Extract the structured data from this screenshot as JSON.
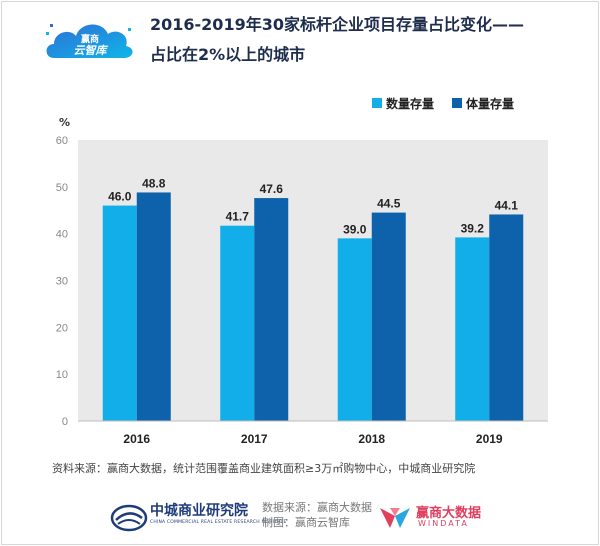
{
  "header": {
    "logo_text_top": "赢商",
    "logo_text_bottom": "云智库",
    "title_line1": "2016-2019年30家标杆企业项目存量占比变化——",
    "title_line2": "占比在2%以上的城市"
  },
  "chart_data": {
    "type": "bar",
    "categories": [
      "2016",
      "2017",
      "2018",
      "2019"
    ],
    "series": [
      {
        "name": "数量存量",
        "values": [
          46.0,
          41.7,
          39.0,
          39.2
        ],
        "labels": [
          "46.0",
          "41.7",
          "39.0",
          "39.2"
        ],
        "color": "#12aee9"
      },
      {
        "name": "体量存量",
        "values": [
          48.8,
          47.6,
          44.5,
          44.1
        ],
        "labels": [
          "48.8",
          "47.6",
          "44.5",
          "44.1"
        ],
        "color": "#0e62ac"
      }
    ],
    "ylabel": "%",
    "ylim": [
      0,
      60
    ],
    "yticks": [
      "0",
      "10",
      "20",
      "30",
      "40",
      "50",
      "60"
    ],
    "legend_position": "top-right",
    "grid": false,
    "plot_background": "#e9e9e9"
  },
  "footer": {
    "source": "资料来源：赢商大数据，统计范围覆盖商业建筑面积≥3万㎡购物中心，中城商业研究院",
    "institute_name": "中城商业研究院",
    "institute_english": "CHINA COMMERCIAL REAL ESTATE RESEARCH INSTITUTE",
    "credit_line1": "数据来源：赢商大数据",
    "credit_line2": "制图：赢商云智库",
    "windata_name": "赢商大数据",
    "windata_english": "WINDATA"
  },
  "colors": {
    "title": "#1f2d4d",
    "brand_blue": "#1f3c7a",
    "brand_red": "#e0405e"
  }
}
